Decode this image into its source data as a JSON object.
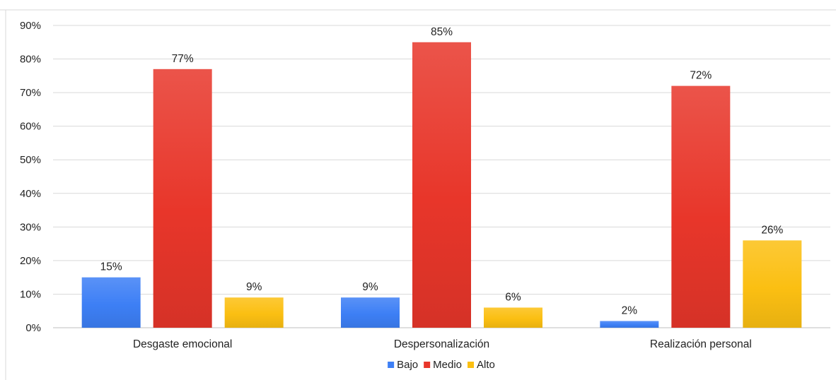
{
  "chart_data": {
    "type": "bar",
    "categories": [
      "Desgaste emocional",
      "Despersonalización",
      "Realización personal"
    ],
    "series": [
      {
        "name": "Bajo",
        "color": "#3d7ff5",
        "values": [
          15,
          9,
          2
        ],
        "labels": [
          "15%",
          "9%",
          "2%"
        ]
      },
      {
        "name": "Medio",
        "color": "#e8362a",
        "values": [
          77,
          85,
          72
        ],
        "labels": [
          "77%",
          "85%",
          "72%"
        ]
      },
      {
        "name": "Alto",
        "color": "#fbbf12",
        "values": [
          9,
          6,
          26
        ],
        "labels": [
          "9%",
          "6%",
          "26%"
        ]
      }
    ],
    "yticks": [
      "0%",
      "10%",
      "20%",
      "30%",
      "40%",
      "50%",
      "60%",
      "70%",
      "80%",
      "90%"
    ],
    "ylim": [
      0,
      90
    ],
    "grid": true,
    "legend_position": "bottom"
  }
}
